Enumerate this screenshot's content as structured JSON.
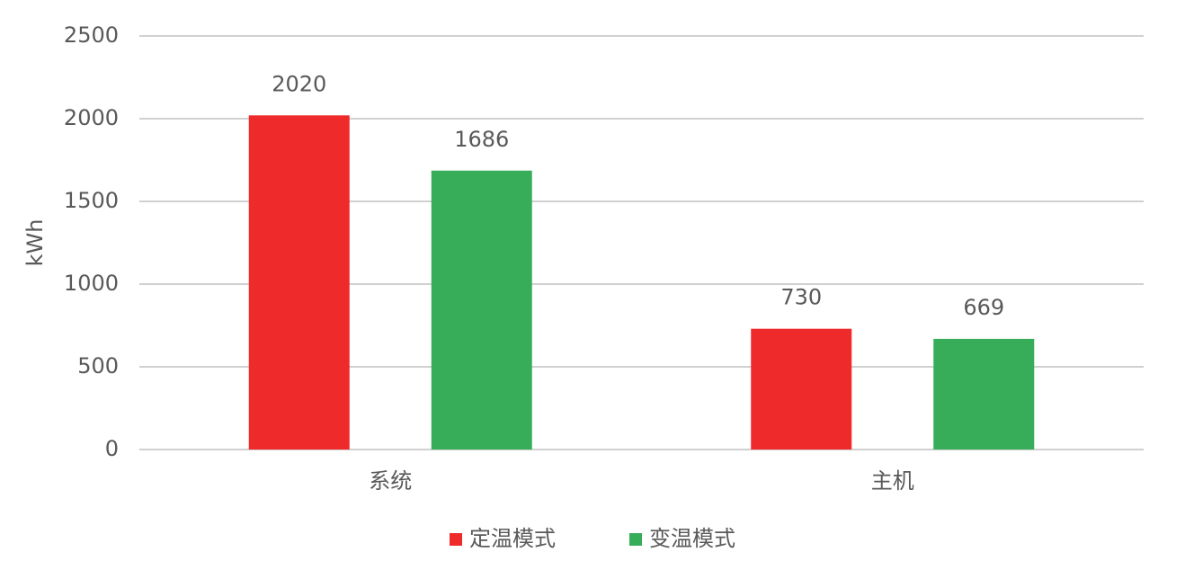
{
  "chart_data": {
    "type": "bar",
    "y_label": "kWh",
    "categories": [
      "系统",
      "主机"
    ],
    "series": [
      {
        "name": "定温模式",
        "color": "#ee2a2a",
        "values": [
          2020,
          730
        ]
      },
      {
        "name": "变温模式",
        "color": "#37ad5a",
        "values": [
          1686,
          669
        ]
      }
    ],
    "ylim": [
      0,
      2500
    ],
    "yticks": [
      0,
      500,
      1000,
      1500,
      2000,
      2500
    ],
    "grid": true,
    "legend": "bottom"
  }
}
